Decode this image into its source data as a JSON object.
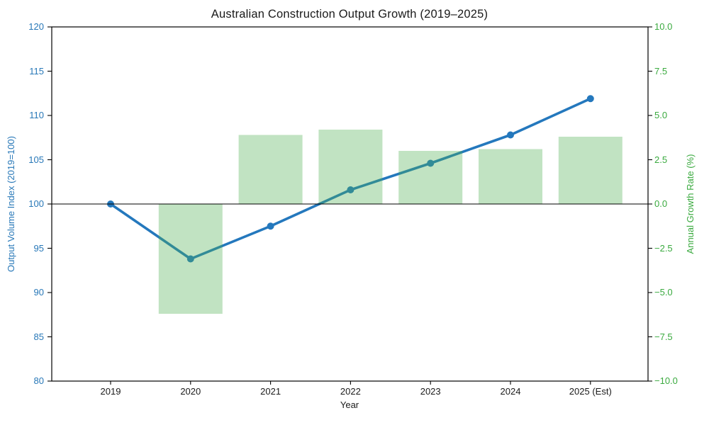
{
  "chart_data": {
    "type": "line+bar",
    "title": "Australian Construction Output Growth (2019–2025)",
    "xlabel": "Year",
    "categories": [
      "2019",
      "2020",
      "2021",
      "2022",
      "2023",
      "2024",
      "2025 (Est)"
    ],
    "left_axis": {
      "label": "Output Volume Index (2019=100)",
      "color": "#2878b8",
      "lim": [
        80,
        120
      ],
      "tick_values": [
        80,
        85,
        90,
        95,
        100,
        105,
        110,
        115,
        120
      ],
      "tick_labels": [
        "80",
        "85",
        "90",
        "95",
        "100",
        "105",
        "110",
        "115",
        "120"
      ]
    },
    "right_axis": {
      "label": "Annual Growth Rate (%)",
      "color": "#3aaa3f",
      "lim": [
        -10,
        10
      ],
      "tick_values": [
        -10,
        -7.5,
        -5,
        -2.5,
        0,
        2.5,
        5,
        7.5,
        10
      ],
      "tick_labels": [
        "−10.0",
        "−7.5",
        "−5.0",
        "−2.5",
        "0.0",
        "2.5",
        "5.0",
        "7.5",
        "10.0"
      ]
    },
    "series": [
      {
        "name": "Output Volume Index (2019=100)",
        "type": "line",
        "axis": "left",
        "color": "#2478bd",
        "marker": "circle",
        "values": [
          100,
          93.8,
          97.5,
          101.6,
          104.6,
          107.8,
          111.9
        ]
      },
      {
        "name": "Annual Growth Rate (%)",
        "type": "bar",
        "axis": "right",
        "color": "#4caf50",
        "opacity": 0.35,
        "values": [
          null,
          -6.2,
          3.9,
          4.2,
          3.0,
          3.1,
          3.8
        ]
      }
    ],
    "zero_line": true,
    "grid": false,
    "legend": "none"
  }
}
